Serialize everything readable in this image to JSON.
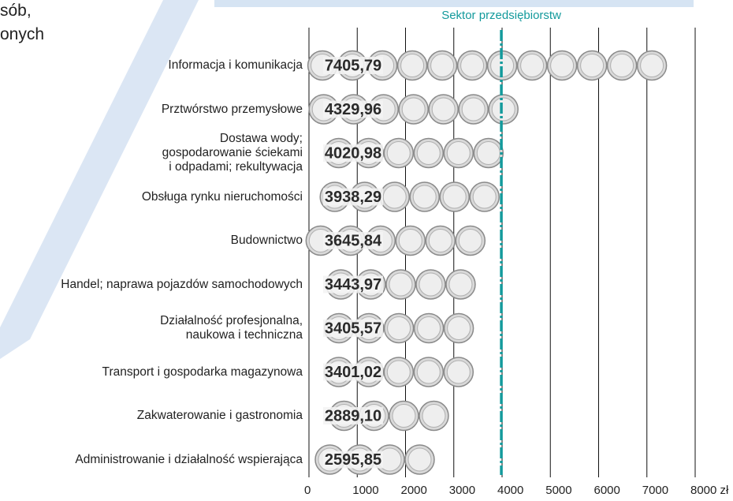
{
  "fragments": [
    "sób,",
    "onych"
  ],
  "chart_data": {
    "type": "coin-bar",
    "categories": [
      "Informacja i komunikacja",
      "Prztwórstwo przemysłowe",
      "Dostawa wody;\ngospodarowanie ściekami\ni odpadami; rekultywacja",
      "Obsługa rynku nieruchomości",
      "Budownictwo",
      "Handel; naprawa pojazdów samochodowych",
      "Działalność profesjonalna,\nnaukowa i techniczna",
      "Transport i gospodarka magazynowa",
      "Zakwaterowanie i gastronomia",
      "Administrowanie i działalność wspierająca"
    ],
    "values": [
      7405.79,
      4329.96,
      4020.98,
      3938.29,
      3645.84,
      3443.97,
      3405.57,
      3401.02,
      2889.1,
      2595.85
    ],
    "value_labels": [
      "7405,79",
      "4329,96",
      "4020,98",
      "3938,29",
      "3645,84",
      "3443,97",
      "3405,57",
      "3401,02",
      "2889,10",
      "2595,85"
    ],
    "xlim": [
      0,
      8000
    ],
    "xticks": [
      0,
      1000,
      2000,
      3000,
      4000,
      5000,
      6000,
      7000,
      {
        "value": 8000,
        "label": "8000 zł"
      }
    ],
    "grid": true,
    "reference": {
      "label": "Sektor przedsiębiorstw",
      "value": 3985,
      "color": "#139a9c"
    }
  }
}
